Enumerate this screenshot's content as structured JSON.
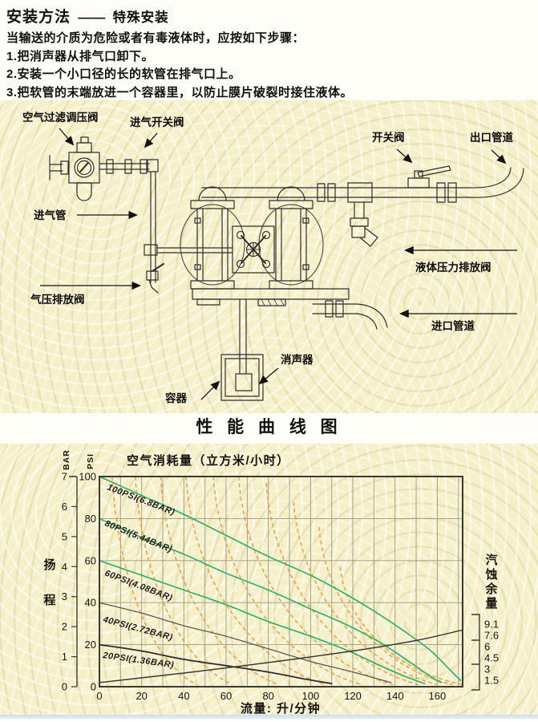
{
  "header": {
    "title_main": "安装方法",
    "title_dash": "——",
    "title_sub": "特殊安装",
    "intro": "当输送的介质为危险或者有毒液体时，应按如下步骤：",
    "steps": [
      "1.把消声器从排气口卸下。",
      "2.安装一个小口径的长的软管在排气口上。",
      "3.把软管的末端放进一个容器里，以防止膜片破裂时接住液体。"
    ]
  },
  "diagram": {
    "labels": {
      "air_filter_regulator": "空气过滤调压阀",
      "inlet_switch_valve": "进气开关阀",
      "air_inlet_pipe": "进气管",
      "air_pressure_relief_valve": "气压排放阀",
      "switch_valve": "开关阀",
      "outlet_piping": "出口管道",
      "liquid_pressure_relief_valve": "液体压力排放阀",
      "inlet_piping": "进口管道",
      "muffler": "消声器",
      "container": "容器"
    }
  },
  "section_heading": "性 能 曲 线 图",
  "chart_data": {
    "type": "line",
    "title": "空气消耗量（立方米/小时）",
    "xlabel": "流量: 升/分钟",
    "left_title": "扬程",
    "right_title": "汽蚀余量",
    "x_axis": {
      "ticks": [
        0,
        20,
        40,
        60,
        80,
        100,
        120,
        140,
        160
      ],
      "max": 172,
      "grid_step": 10
    },
    "left_axis_outer": {
      "label": "BAR",
      "ticks": [
        7,
        6,
        5,
        4,
        3,
        2,
        1,
        0
      ]
    },
    "left_axis_inner": {
      "label": "PSI",
      "ticks": [
        100,
        80,
        60,
        40,
        20,
        0
      ],
      "grid_step": 20
    },
    "right_scale": [
      "9.1",
      "7.6",
      "6",
      "4.5",
      "3",
      "1.5"
    ],
    "colors": {
      "green": "#2fb269",
      "orange_dashed": "#ef9e46",
      "dark": "#2d2d28",
      "grid": "#9a9a82",
      "panel_bg": "#f6f0c9",
      "bottom_rule": "#c9dfec"
    },
    "series": [
      {
        "name": "100PSI(6.8BAR)",
        "color": "#2fb269",
        "width": 1.7,
        "points": [
          [
            0,
            100
          ],
          [
            20,
            91
          ],
          [
            40,
            82
          ],
          [
            60,
            72
          ],
          [
            80,
            62
          ],
          [
            100,
            53
          ],
          [
            115,
            45
          ],
          [
            130,
            36
          ],
          [
            145,
            26
          ],
          [
            157,
            17
          ],
          [
            166,
            8
          ],
          [
            171,
            3
          ]
        ]
      },
      {
        "name": "80PSI(5.44BAR)",
        "color": "#2fb269",
        "width": 1.7,
        "points": [
          [
            0,
            80
          ],
          [
            20,
            71
          ],
          [
            40,
            63
          ],
          [
            60,
            54
          ],
          [
            80,
            46
          ],
          [
            100,
            37
          ],
          [
            118,
            29
          ],
          [
            133,
            21
          ],
          [
            148,
            11
          ],
          [
            158,
            4
          ],
          [
            162,
            2
          ]
        ]
      },
      {
        "name": "60PSI(4.08BAR)",
        "color": "#2fb269",
        "width": 1.7,
        "points": [
          [
            0,
            60
          ],
          [
            20,
            53
          ],
          [
            40,
            46
          ],
          [
            60,
            39
          ],
          [
            80,
            31
          ],
          [
            100,
            24
          ],
          [
            118,
            17
          ],
          [
            133,
            10
          ],
          [
            147,
            4
          ],
          [
            154,
            1.5
          ]
        ]
      },
      {
        "name": "40PSI(2.72BAR)",
        "color": "#5a5a52",
        "width": 1.3,
        "points": [
          [
            0,
            40
          ],
          [
            20,
            35
          ],
          [
            40,
            29
          ],
          [
            60,
            24
          ],
          [
            80,
            18
          ],
          [
            100,
            12
          ],
          [
            120,
            7
          ],
          [
            138,
            2
          ]
        ]
      },
      {
        "name": "20PSI(1.36BAR)",
        "color": "#2d2d28",
        "width": 1.8,
        "points": [
          [
            0,
            20
          ],
          [
            20,
            17
          ],
          [
            40,
            13
          ],
          [
            60,
            10
          ],
          [
            80,
            7
          ],
          [
            98,
            3.5
          ],
          [
            110,
            1.5
          ]
        ]
      },
      {
        "name": "NPSH",
        "color": "#3a3a34",
        "width": 1.5,
        "no_label": true,
        "points": [
          [
            0,
            2
          ],
          [
            40,
            6.5
          ],
          [
            80,
            11.5
          ],
          [
            120,
            17
          ],
          [
            150,
            22
          ],
          [
            172,
            27
          ]
        ]
      }
    ],
    "air_contours": {
      "color": "#ef9e46",
      "pairs": [
        [
          6,
          100,
          46
        ],
        [
          17,
          100,
          63
        ],
        [
          29,
          100,
          85
        ],
        [
          41,
          100,
          107
        ],
        [
          54,
          100,
          124
        ],
        [
          66,
          100,
          139
        ],
        [
          79,
          97,
          151
        ],
        [
          92,
          88,
          160
        ],
        [
          104,
          76,
          167
        ],
        [
          114,
          57,
          172
        ]
      ]
    }
  }
}
